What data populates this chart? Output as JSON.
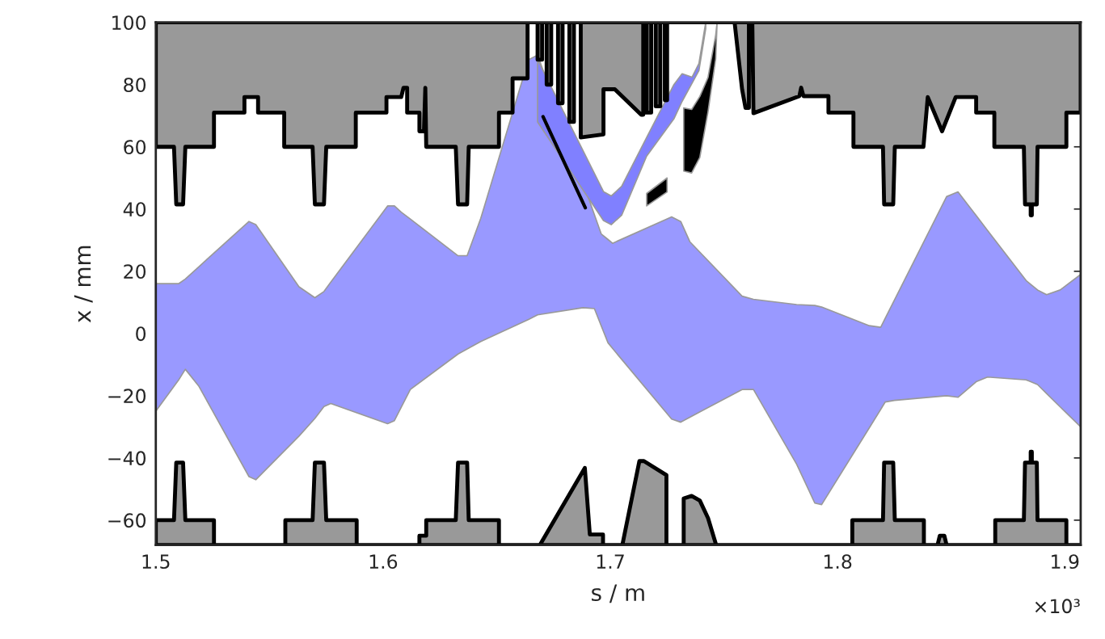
{
  "chart_data": {
    "type": "area",
    "xlabel": "s / m",
    "ylabel": "x / mm",
    "annotations": [
      "×10³"
    ],
    "xlim": [
      1.5,
      1.907
    ],
    "ylim": [
      -68,
      100
    ],
    "xticks": [
      1.5,
      1.6,
      1.7,
      1.8,
      1.9
    ],
    "yticks": [
      {
        "value": -60,
        "label": "−60"
      },
      {
        "value": -40,
        "label": "−40"
      },
      {
        "value": -20,
        "label": "−20"
      },
      0,
      20,
      40,
      60,
      80,
      100
    ],
    "grid": false,
    "legend": false,
    "series": [
      {
        "color": "#9999ff",
        "values": [
          null,
          null,
          null,
          null,
          null,
          null,
          null,
          null,
          null,
          null,
          null,
          null,
          null,
          null,
          null,
          null,
          null,
          null,
          null,
          null,
          null,
          null,
          null,
          null,
          null,
          null,
          null,
          null,
          null,
          null,
          null,
          null,
          null,
          null,
          null,
          null,
          null,
          null,
          null,
          null,
          null,
          null,
          null,
          null,
          null
        ],
        "x": [
          1.5,
          1.51,
          1.513,
          1.519,
          1.541,
          1.544,
          1.563,
          1.57,
          1.574,
          1.577,
          1.602,
          1.605,
          1.608,
          1.612,
          1.633,
          1.637,
          1.643,
          1.664,
          1.668,
          1.688,
          1.693,
          1.696,
          1.699,
          1.701,
          1.727,
          1.731,
          1.735,
          1.758,
          1.763,
          1.782,
          1.79,
          1.793,
          1.814,
          1.819,
          1.821,
          1.825,
          1.848,
          1.853,
          1.861,
          1.866,
          1.883,
          1.888,
          1.892,
          1.898,
          1.907
        ],
        "upper": [
          16,
          16,
          17.5,
          21.5,
          36,
          35,
          15,
          11.5,
          13.5,
          16.5,
          41,
          41,
          39,
          36.8,
          25,
          25,
          37,
          88,
          89.5,
          48.5,
          38.2,
          32,
          30.2,
          29,
          37.5,
          36,
          29.5,
          12,
          11,
          9.3,
          9,
          8.5,
          2.5,
          2,
          4.9,
          10.7,
          44,
          45.5,
          37.9,
          33.1,
          17,
          14,
          12.5,
          14,
          19
        ],
        "lower": [
          -25,
          -15,
          -11.5,
          -17,
          -46,
          -47,
          -33,
          -27.3,
          -23.5,
          -22.5,
          -29,
          -28,
          -23.7,
          -18,
          -6.6,
          -5,
          -2.6,
          4.5,
          6,
          8.3,
          8,
          2.5,
          -3,
          -4.8,
          -27.5,
          -28.5,
          -26.9,
          -18,
          -18,
          -42,
          -54.5,
          -55,
          -30.3,
          -24.4,
          -22,
          -21.5,
          -20,
          -20.5,
          -15.5,
          -14,
          -14.9,
          -16.4,
          -19.3,
          -23.6,
          -30
        ]
      },
      {
        "color": "#8080ff",
        "values": [
          null,
          null,
          null,
          null,
          null,
          null,
          null,
          null,
          null,
          null
        ],
        "x": [
          1.668,
          1.697,
          1.7004,
          1.705,
          1.716,
          1.728,
          1.7316,
          1.736,
          1.739,
          1.742
        ],
        "upper": [
          88,
          45.6,
          44.2,
          47.3,
          63,
          80,
          83.5,
          82.4,
          86.8,
          100
        ],
        "lower": [
          68,
          36.3,
          35,
          38,
          57,
          69,
          74.6,
          80.5,
          84.5,
          98
        ]
      },
      {
        "color": "#000000",
        "values": [
          null,
          null
        ],
        "x": [
          1.716,
          1.725
        ],
        "upper": [
          45,
          50
        ],
        "lower": [
          41,
          45.5
        ]
      },
      {
        "color": "#000000",
        "values": [
          null,
          null,
          null,
          null,
          null,
          null
        ],
        "x": [
          1.7323,
          1.7358,
          1.7394,
          1.743,
          1.7464,
          1.747
        ],
        "upper": [
          72.5,
          72,
          76.2,
          82.3,
          96,
          100
        ],
        "lower": [
          52.2,
          51.6,
          56.6,
          71.2,
          88.3,
          100
        ]
      },
      {
        "type": "line",
        "color": "#000000",
        "x": [
          1.6704,
          1.689
        ],
        "values": [
          69.7,
          40.4
        ]
      },
      {
        "color": "#999999",
        "line_style": "solid",
        "values": [
          null,
          null,
          null,
          null,
          null,
          null,
          null,
          null,
          null,
          null,
          null,
          null,
          null,
          null,
          null,
          null,
          null,
          null,
          null,
          null,
          null,
          null,
          null,
          null,
          null,
          null,
          null,
          null,
          null,
          null,
          null,
          null,
          null,
          null,
          null,
          null,
          null,
          null,
          null,
          null,
          null,
          null,
          null,
          null,
          null,
          null,
          null,
          null,
          null,
          null,
          null,
          null,
          null,
          null,
          null,
          null,
          null,
          null,
          null,
          null,
          null,
          null,
          null,
          null,
          null,
          null,
          null,
          null,
          null,
          null,
          null,
          null,
          null,
          null,
          null,
          null,
          null,
          null,
          null,
          null,
          null,
          null,
          null,
          null,
          null,
          null,
          null,
          null,
          null,
          null,
          null,
          null,
          null,
          null,
          null,
          null,
          null,
          null,
          null,
          null,
          null,
          null,
          null,
          null,
          null,
          null,
          null,
          null,
          null,
          null,
          null,
          null,
          null
        ],
        "x": [
          1.5,
          1.508,
          1.509,
          1.512,
          1.513,
          1.5256,
          1.5256,
          1.539,
          1.539,
          1.545,
          1.545,
          1.5565,
          1.5565,
          1.569,
          1.57,
          1.574,
          1.575,
          1.588,
          1.588,
          1.6015,
          1.6015,
          1.608,
          1.609,
          1.6106,
          1.6106,
          1.616,
          1.616,
          1.618,
          1.6186,
          1.619,
          1.632,
          1.633,
          1.637,
          1.6377,
          1.651,
          1.651,
          1.657,
          1.657,
          1.6636,
          1.6636,
          1.668,
          1.668,
          1.67,
          1.67,
          1.672,
          1.672,
          1.674,
          1.674,
          1.677,
          1.677,
          1.679,
          1.679,
          1.682,
          1.682,
          1.684,
          1.684,
          1.687,
          1.687,
          1.697,
          1.697,
          1.702,
          1.7136,
          1.7145,
          1.7145,
          1.716,
          1.716,
          1.718,
          1.718,
          1.72,
          1.72,
          1.722,
          1.722,
          1.724,
          1.724,
          1.725,
          1.725,
          1.7547,
          1.758,
          1.7595,
          1.761,
          1.761,
          1.7625,
          1.763,
          1.7832,
          1.784,
          1.785,
          1.796,
          1.796,
          1.807,
          1.807,
          1.82,
          1.8205,
          1.8245,
          1.8252,
          1.8378,
          1.8397,
          1.846,
          1.852,
          1.861,
          1.861,
          1.869,
          1.869,
          1.882,
          1.8825,
          1.885,
          1.885,
          1.8855,
          1.8855,
          1.8877,
          1.888,
          1.9007,
          1.9007,
          1.907
        ],
        "lower": [
          60,
          60,
          41.5,
          41.5,
          60,
          60,
          71,
          71,
          76,
          76,
          71,
          71,
          60,
          60,
          41.5,
          41.5,
          60,
          60,
          71,
          71,
          76,
          76,
          79,
          79,
          71,
          71,
          65,
          65,
          79,
          60,
          60,
          41.5,
          41.5,
          60,
          60,
          71,
          71,
          82,
          82,
          100,
          100,
          88,
          88,
          100,
          100,
          80,
          80,
          100,
          100,
          74,
          74,
          100,
          100,
          68,
          68,
          100,
          100,
          63,
          64,
          78.5,
          78.5,
          70.3,
          70.3,
          100,
          100,
          71,
          71,
          100,
          100,
          73,
          73,
          100,
          100,
          75,
          75,
          100,
          100,
          78.5,
          72.5,
          72.5,
          100,
          100,
          70.8,
          76.3,
          79,
          76.3,
          76.3,
          71,
          71,
          60,
          60,
          41.5,
          41.5,
          60,
          60,
          76,
          65,
          76,
          76,
          71,
          71,
          60,
          60,
          41.5,
          41.5,
          38,
          38,
          41.5,
          41.5,
          60,
          60,
          71,
          71
        ],
        "upper": [
          100,
          100,
          100,
          100,
          100,
          100,
          100,
          100,
          100,
          100,
          100,
          100,
          100,
          100,
          100,
          100,
          100,
          100,
          100,
          100,
          100,
          100,
          100,
          100,
          100,
          100,
          100,
          100,
          100,
          100,
          100,
          100,
          100,
          100,
          100,
          100,
          100,
          100,
          100,
          100,
          100,
          100,
          100,
          100,
          100,
          100,
          100,
          100,
          100,
          100,
          100,
          100,
          100,
          100,
          100,
          100,
          100,
          100,
          100,
          100,
          100,
          100,
          100,
          100,
          100,
          100,
          100,
          100,
          100,
          100,
          100,
          100,
          100,
          100,
          100,
          100,
          100,
          100,
          100,
          100,
          100,
          100,
          100,
          100,
          100,
          100,
          100,
          100,
          100,
          100,
          100,
          100,
          100,
          100,
          100,
          100,
          100,
          100,
          100,
          100,
          100,
          100,
          100,
          100,
          100,
          100,
          100,
          100,
          100,
          100,
          100,
          100,
          100
        ]
      },
      {
        "color": "#999999",
        "line_style": "solid",
        "values": [
          null,
          null,
          null,
          null,
          null,
          null,
          null,
          null,
          null,
          null,
          null,
          null,
          null,
          null,
          null,
          null,
          null,
          null,
          null,
          null,
          null,
          null,
          null,
          null,
          null,
          null,
          null,
          null,
          null,
          null,
          null,
          null,
          null,
          null,
          null,
          null,
          null,
          null,
          null,
          null,
          null,
          null,
          null,
          null,
          null,
          null,
          null,
          null,
          null,
          null,
          null,
          null,
          null,
          null,
          null,
          null,
          null,
          null,
          null,
          null,
          null,
          null,
          null,
          null,
          null,
          null
        ],
        "x": [
          1.5,
          1.508,
          1.509,
          1.512,
          1.513,
          1.5256,
          1.5256,
          1.557,
          1.557,
          1.569,
          1.57,
          1.574,
          1.575,
          1.5884,
          1.5884,
          1.616,
          1.616,
          1.619,
          1.619,
          1.632,
          1.633,
          1.637,
          1.6377,
          1.651,
          1.651,
          1.669,
          1.6888,
          1.691,
          1.6968,
          1.6968,
          1.7053,
          1.7128,
          1.7148,
          1.7247,
          1.7247,
          1.7323,
          1.7323,
          1.7358,
          1.7394,
          1.743,
          1.7466,
          1.8065,
          1.8065,
          1.82,
          1.8205,
          1.8245,
          1.8252,
          1.838,
          1.838,
          1.844,
          1.845,
          1.847,
          1.848,
          1.8694,
          1.8694,
          1.882,
          1.8825,
          1.885,
          1.885,
          1.8855,
          1.8855,
          1.8877,
          1.888,
          1.9007,
          1.9007,
          1.907
        ],
        "upper": [
          -60,
          -60,
          -41.5,
          -41.5,
          -60,
          -60,
          -68,
          -68,
          -60,
          -60,
          -41.5,
          -41.5,
          -60,
          -60,
          -68,
          -68,
          -65,
          -65,
          -60,
          -60,
          -41.5,
          -41.5,
          -60,
          -60,
          -68,
          -68,
          -43.2,
          -64.6,
          -64.6,
          -68,
          -68,
          -41,
          -41,
          -45.5,
          -68,
          -68,
          -53,
          -52.2,
          -53.7,
          -59.3,
          -68,
          -68,
          -60,
          -60,
          -41.5,
          -41.5,
          -60,
          -60,
          -68,
          -68,
          -65,
          -65,
          -68,
          -68,
          -60,
          -60,
          -41.5,
          -41.5,
          -38,
          -38,
          -41.5,
          -41.5,
          -60,
          -60,
          -68,
          -68
        ],
        "lower": [
          -68,
          -68,
          -68,
          -68,
          -68,
          -68,
          -68,
          -68,
          -68,
          -68,
          -68,
          -68,
          -68,
          -68,
          -68,
          -68,
          -68,
          -68,
          -68,
          -68,
          -68,
          -68,
          -68,
          -68,
          -68,
          -68,
          -68,
          -68,
          -68,
          -68,
          -68,
          -68,
          -68,
          -68,
          -68,
          -68,
          -68,
          -68,
          -68,
          -68,
          -68,
          -68,
          -68,
          -68,
          -68,
          -68,
          -68,
          -68,
          -68,
          -68,
          -68,
          -68,
          -68,
          -68,
          -68,
          -68,
          -68,
          -68,
          -68,
          -68,
          -68,
          -68,
          -68,
          -68,
          -68,
          -68
        ]
      }
    ]
  }
}
